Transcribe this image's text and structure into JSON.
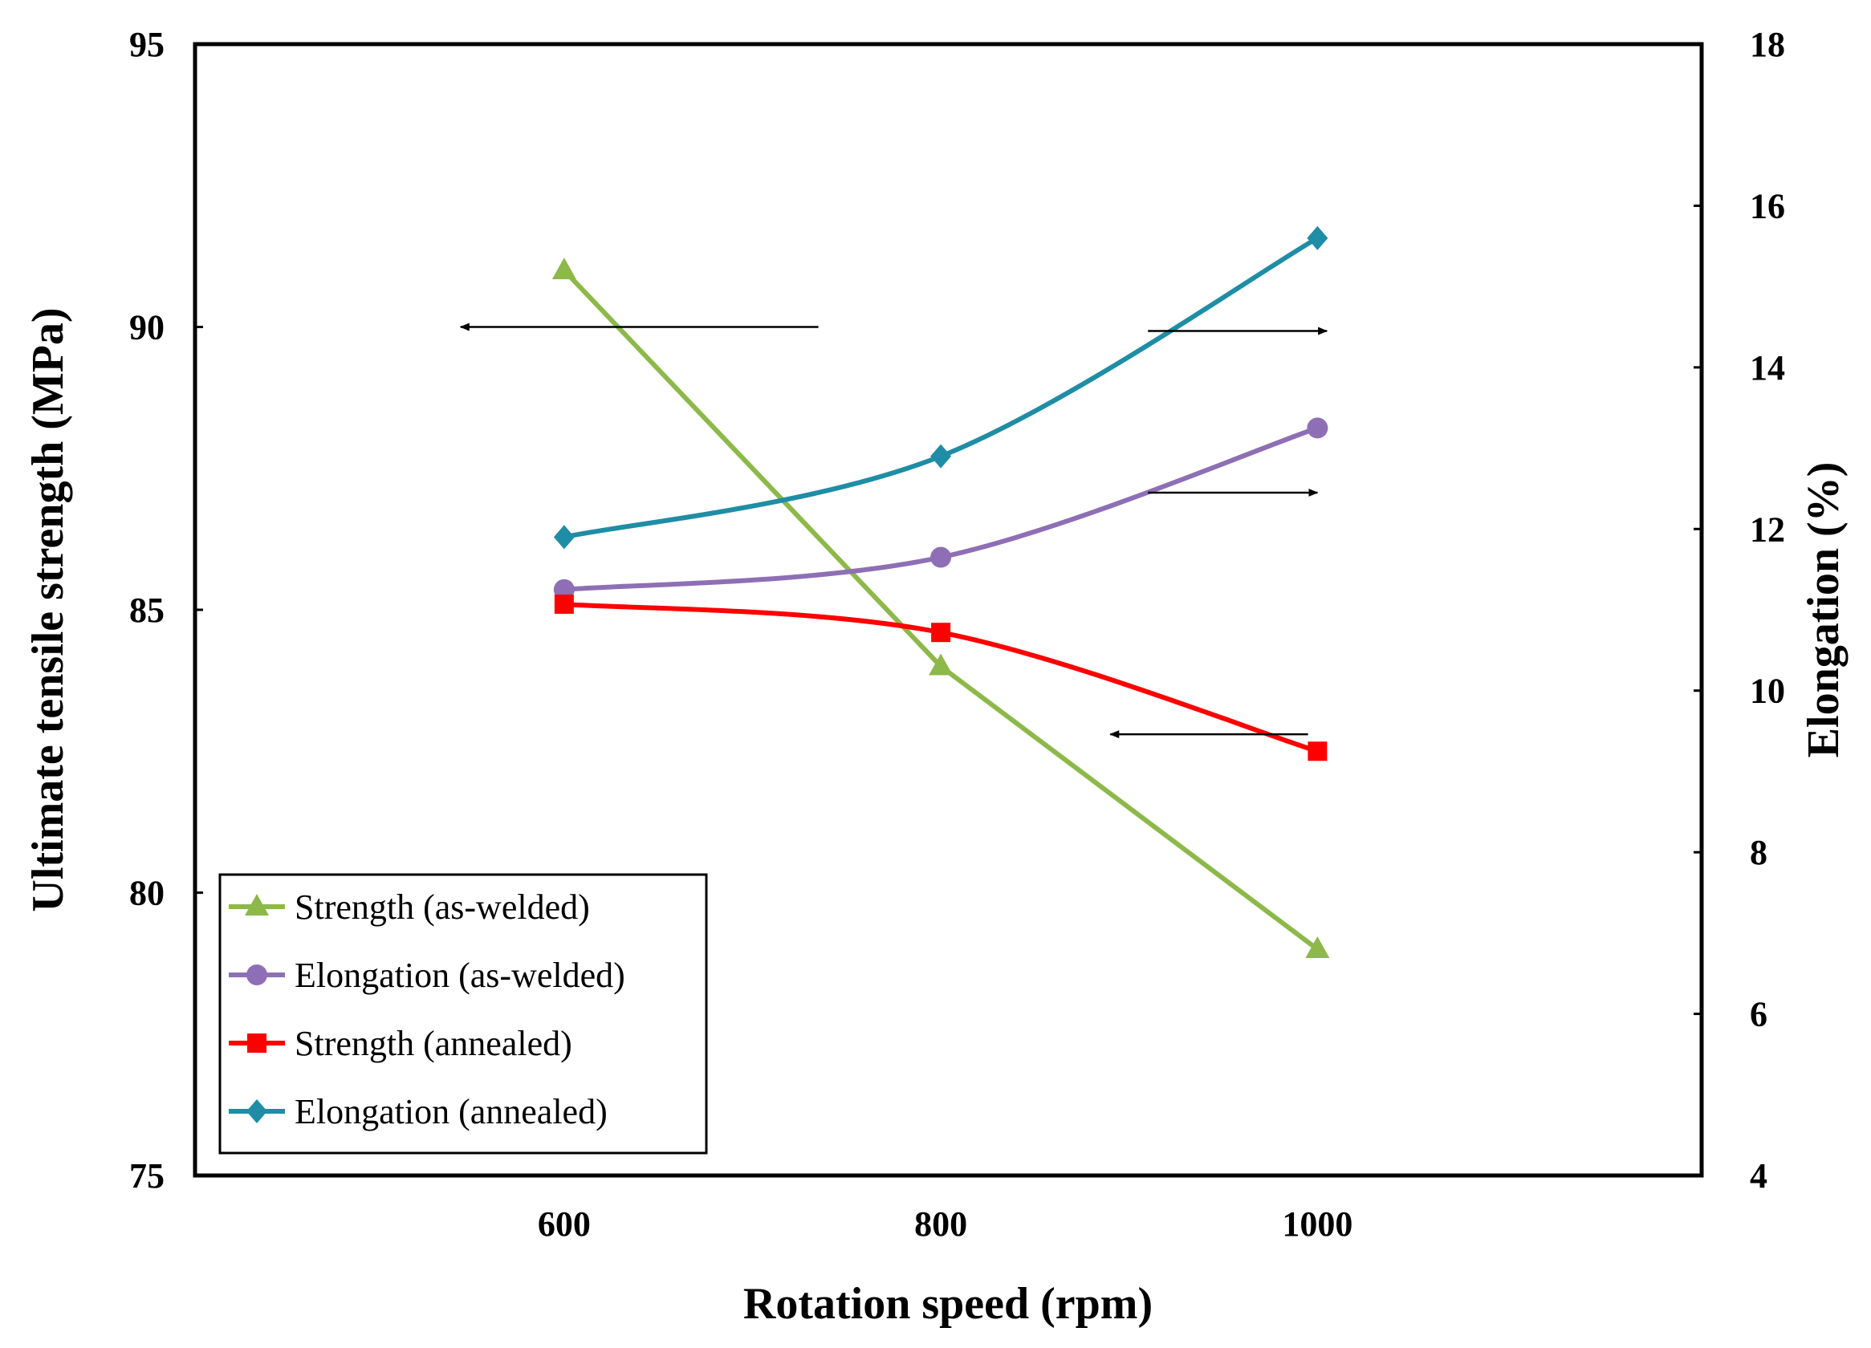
{
  "chart_data": {
    "type": "line",
    "title": "",
    "xlabel": "Rotation speed (rpm)",
    "ylabel_left": "Ultimate tensile strength (MPa)",
    "ylabel_right": "Elongation (%)",
    "x_ticks": [
      "600",
      "800",
      "1000"
    ],
    "y_left_ticks": [
      "75",
      "80",
      "85",
      "90",
      "95"
    ],
    "y_right_ticks": [
      "4",
      "6",
      "8",
      "10",
      "12",
      "14",
      "16",
      "18"
    ],
    "xlim": [
      404,
      1204
    ],
    "ylim_left": [
      75,
      95
    ],
    "ylim_right": [
      4,
      18
    ],
    "x": [
      600,
      800,
      1000
    ],
    "series": [
      {
        "name": "Strength (as-welded)",
        "axis": "left",
        "marker": "triangle",
        "color": "#8DB84A",
        "smooth": false,
        "values": [
          91.0,
          84.0,
          79.0
        ]
      },
      {
        "name": "Elongation (as-welded)",
        "axis": "right",
        "marker": "circle",
        "color": "#8E6FB5",
        "smooth": true,
        "values": [
          11.25,
          11.65,
          13.25
        ]
      },
      {
        "name": "Strength (annealed)",
        "axis": "left",
        "marker": "square",
        "color": "#FF0000",
        "smooth": true,
        "values": [
          85.1,
          84.6,
          82.5
        ]
      },
      {
        "name": "Elongation (annealed)",
        "axis": "right",
        "marker": "diamond",
        "color": "#1F8DA5",
        "smooth": true,
        "values": [
          11.9,
          12.9,
          15.6
        ]
      }
    ],
    "annotations": [
      {
        "type": "arrow",
        "direction": "left",
        "axis": "left",
        "from_x": 735,
        "to_x": 545,
        "y": 90.0
      },
      {
        "type": "arrow",
        "direction": "right",
        "axis": "right",
        "from_x": 910,
        "to_x": 1005,
        "y": 14.45
      },
      {
        "type": "arrow",
        "direction": "right",
        "axis": "right",
        "from_x": 910,
        "to_x": 1000,
        "y": 12.45
      },
      {
        "type": "arrow",
        "direction": "left",
        "axis": "left",
        "from_x": 995,
        "to_x": 890,
        "y": 82.8
      }
    ],
    "legend": {
      "position": "bottom-left",
      "entries": [
        "Strength (as-welded)",
        "Elongation (as-welded)",
        "Strength (annealed)",
        "Elongation (annealed)"
      ]
    }
  }
}
